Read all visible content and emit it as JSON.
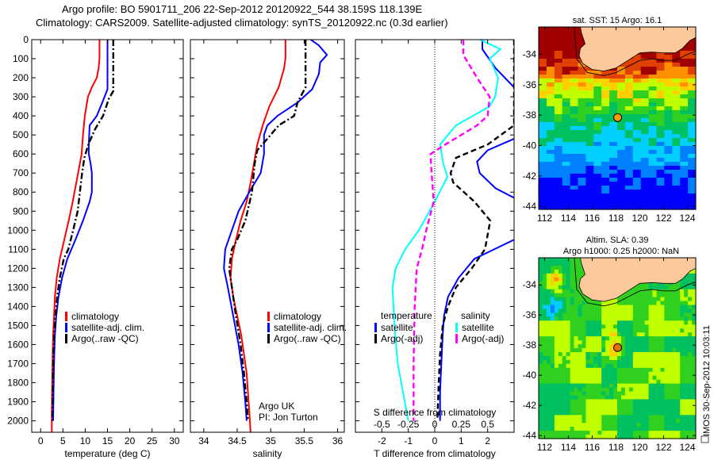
{
  "header": {
    "line1": "Argo profile: BO 5901711_206 22-Sep-2012 20120922_544 38.159S 118.139E",
    "line2": "Climatology: CARS2009. Satellite-adjusted climatology: synTS_20120922.nc (0.3d earlier)"
  },
  "colors": {
    "climatology": "#ff0000",
    "satellite": "#0000ff",
    "argo": "#000000",
    "salinity_satellite": "#00ffff",
    "salinity_argo": "#ff00ff",
    "land": "#fdc99a"
  },
  "chart_data": [
    {
      "id": "temperature",
      "type": "line",
      "xlabel": "temperature (deg C)",
      "ylabel": "",
      "xlim": [
        -2,
        32
      ],
      "ylim": [
        2060,
        0
      ],
      "xticks": [
        0,
        5,
        10,
        15,
        20,
        25,
        30
      ],
      "yticks": [
        0,
        100,
        200,
        300,
        400,
        500,
        600,
        700,
        800,
        900,
        1000,
        1100,
        1200,
        1300,
        1400,
        1500,
        1600,
        1700,
        1800,
        1900,
        2000
      ],
      "legend": [
        "climatology",
        "satellite-adj. clim.",
        "Argo(..raw -QC)"
      ],
      "series": [
        {
          "name": "climatology",
          "style": "solid",
          "color": "#ff0000",
          "x": [
            13.2,
            13.2,
            13.0,
            12.6,
            11.5,
            10.6,
            9.9,
            9.5,
            9.2,
            8.8,
            8.0,
            7.2,
            6.3,
            5.3,
            4.3,
            3.6,
            3.2,
            3.0,
            2.8,
            2.7,
            2.6,
            2.5,
            2.5
          ],
          "depth": [
            0,
            100,
            150,
            200,
            250,
            300,
            400,
            500,
            600,
            650,
            750,
            850,
            950,
            1050,
            1150,
            1250,
            1350,
            1450,
            1550,
            1650,
            1800,
            1950,
            2060
          ]
        },
        {
          "name": "satellite-adj. clim.",
          "style": "solid",
          "color": "#0000ff",
          "x": [
            15.0,
            15.0,
            15.0,
            14.0,
            12.6,
            11.0,
            10.8,
            10.8,
            11.2,
            11.5,
            11.5,
            11.0,
            9.5,
            7.8,
            6.0,
            4.8,
            4.0,
            3.5,
            3.2,
            3.0,
            2.9,
            2.8
          ],
          "depth": [
            0,
            100,
            260,
            320,
            400,
            450,
            550,
            600,
            650,
            700,
            800,
            850,
            950,
            1050,
            1150,
            1250,
            1350,
            1450,
            1550,
            1700,
            1850,
            2000
          ]
        },
        {
          "name": "Argo(..raw -QC)",
          "style": "dashdot",
          "color": "#000000",
          "x": [
            16.3,
            16.3,
            16.3,
            15.3,
            14.0,
            12.2,
            10.7,
            9.8,
            9.3,
            8.8,
            8.3,
            7.3,
            6.2,
            5.2,
            4.3,
            3.7,
            3.3,
            3.0,
            2.8,
            2.7,
            2.6
          ],
          "depth": [
            0,
            100,
            270,
            310,
            400,
            470,
            550,
            620,
            700,
            800,
            900,
            1000,
            1100,
            1150,
            1250,
            1350,
            1450,
            1550,
            1700,
            1850,
            2000
          ]
        }
      ]
    },
    {
      "id": "salinity",
      "type": "line",
      "xlabel": "salinity",
      "ylabel": "",
      "xlim": [
        33.8,
        36.1
      ],
      "ylim": [
        2060,
        0
      ],
      "xticks": [
        34,
        34.5,
        35,
        35.5,
        36
      ],
      "xticklabels": [
        "34",
        "34.5",
        "35",
        "35.5",
        "36"
      ],
      "legend": [
        "climatology",
        "satellite-adj. clim.",
        "Argo(..raw -QC)"
      ],
      "annotation": [
        "Argo UK",
        "PI: Jon Turton"
      ],
      "series": [
        {
          "name": "climatology",
          "style": "solid",
          "color": "#ff0000",
          "x": [
            35.22,
            35.22,
            35.2,
            35.12,
            34.98,
            34.88,
            34.8,
            34.75,
            34.7,
            34.64,
            34.55,
            34.48,
            34.42,
            34.4,
            34.44,
            34.5,
            34.56,
            34.6,
            34.64,
            34.66,
            34.68,
            34.7
          ],
          "depth": [
            0,
            100,
            150,
            250,
            350,
            450,
            550,
            650,
            750,
            850,
            950,
            1050,
            1150,
            1250,
            1350,
            1450,
            1550,
            1650,
            1750,
            1850,
            1950,
            2060
          ]
        },
        {
          "name": "satellite-adj. clim.",
          "style": "solid",
          "color": "#0000ff",
          "x": [
            35.6,
            35.72,
            35.84,
            35.74,
            35.72,
            35.62,
            35.4,
            35.1,
            34.95,
            34.9,
            34.9,
            34.85,
            34.68,
            34.52,
            34.42,
            34.32,
            34.3,
            34.36,
            34.44,
            34.52,
            34.58,
            34.62,
            34.64
          ],
          "depth": [
            0,
            30,
            80,
            120,
            180,
            260,
            330,
            400,
            450,
            500,
            600,
            700,
            800,
            900,
            1000,
            1100,
            1200,
            1300,
            1450,
            1600,
            1750,
            1900,
            2000
          ]
        },
        {
          "name": "Argo(..raw -QC)",
          "style": "dashdot",
          "color": "#000000",
          "x": [
            35.52,
            35.52,
            35.52,
            35.52,
            35.4,
            35.35,
            35.12,
            34.95,
            34.8,
            34.76,
            34.72,
            34.62,
            34.5,
            34.42,
            34.38,
            34.42,
            34.48,
            34.55,
            34.6,
            34.64,
            34.66
          ],
          "depth": [
            0,
            100,
            200,
            250,
            330,
            400,
            450,
            520,
            580,
            650,
            800,
            950,
            1050,
            1100,
            1200,
            1300,
            1450,
            1600,
            1750,
            1900,
            2000
          ]
        }
      ]
    },
    {
      "id": "difference",
      "type": "line",
      "xlabel": "T difference from climatology",
      "x2label": "S difference from climatology",
      "xlim": [
        -3,
        3
      ],
      "x2lim": [
        -0.75,
        0.75
      ],
      "ylim": [
        2060,
        0
      ],
      "xticks": [
        -2,
        -1,
        0,
        1,
        2
      ],
      "x2ticks": [
        -0.5,
        -0.25,
        0,
        0.25,
        0.5
      ],
      "x2ticklabels": [
        "-0.5",
        "-0.25",
        "0",
        "0.25",
        "0.5"
      ],
      "legend_temperature": {
        "title": "temperature",
        "items": [
          "satellite",
          "Argo(-adj)"
        ]
      },
      "legend_salinity": {
        "title": "salinity",
        "items": [
          "satellite",
          "Argo(-adj)"
        ]
      },
      "series": [
        {
          "name": "temperature satellite",
          "style": "solid",
          "color": "#0000ff",
          "axis": "T",
          "x": [
            1.8,
            1.8,
            2.3,
            3.0,
            3.5,
            5.0,
            3.0,
            2.0,
            1.6,
            1.7,
            2.3,
            3.0,
            5.5,
            3.0,
            1.5,
            0.9,
            0.5,
            0.35,
            0.3,
            0.25,
            0.2,
            0.2
          ],
          "depth": [
            0,
            50,
            150,
            250,
            300,
            400,
            520,
            580,
            640,
            700,
            780,
            830,
            900,
            1050,
            1150,
            1250,
            1350,
            1450,
            1550,
            1700,
            1850,
            2000
          ]
        },
        {
          "name": "temperature Argo(-adj)",
          "style": "dashed",
          "color": "#000000",
          "axis": "T",
          "x": [
            3.0,
            3.0,
            3.0,
            2.0,
            0.8,
            0.6,
            0.7,
            1.1,
            1.5,
            1.8,
            2.1,
            1.9,
            1.4,
            0.8,
            0.5,
            0.3,
            0.2,
            0.15,
            0.1
          ],
          "depth": [
            0,
            30,
            450,
            550,
            620,
            700,
            750,
            800,
            850,
            900,
            950,
            1100,
            1200,
            1300,
            1400,
            1500,
            1650,
            1800,
            2000
          ]
        },
        {
          "name": "salinity satellite",
          "style": "solid",
          "color": "#00ffff",
          "axis": "S",
          "x": [
            0.43,
            0.62,
            0.52,
            0.6,
            0.57,
            0.52,
            0.2,
            0.05,
            0.08,
            0.12,
            0.0,
            -0.15,
            -0.28,
            -0.37,
            -0.4,
            -0.38,
            -0.35,
            -0.3,
            -0.25
          ],
          "depth": [
            0,
            50,
            100,
            200,
            300,
            350,
            450,
            550,
            650,
            720,
            850,
            1000,
            1100,
            1200,
            1300,
            1500,
            1700,
            1850,
            2000
          ]
        },
        {
          "name": "salinity Argo(-adj)",
          "style": "dashed",
          "color": "#ff00ff",
          "axis": "S",
          "x": [
            0.27,
            0.27,
            0.4,
            0.52,
            0.5,
            0.4,
            0.1,
            -0.04,
            -0.03,
            -0.01,
            -0.08,
            -0.12,
            -0.17,
            -0.19,
            -0.2,
            -0.2
          ],
          "depth": [
            0,
            80,
            200,
            300,
            400,
            450,
            550,
            600,
            700,
            850,
            1000,
            1100,
            1200,
            1400,
            1700,
            2000
          ]
        }
      ]
    },
    {
      "id": "sst-map",
      "type": "heatmap",
      "title": "sat. SST: 15 Argo: 16.1",
      "xlim": [
        111.5,
        124.7
      ],
      "ylim": [
        -44.2,
        -32.2
      ],
      "xticks": [
        112,
        114,
        116,
        118,
        120,
        122,
        124
      ],
      "yticks": [
        -34,
        -36,
        -38,
        -40,
        -42,
        -44
      ],
      "marker": {
        "lon": 118.139,
        "lat": -38.159
      }
    },
    {
      "id": "sla-map",
      "type": "heatmap",
      "title": "Altim. SLA: 0.39",
      "subtitle": "Argo h1000: 0.25 h2000: NaN",
      "xlim": [
        111.5,
        124.7
      ],
      "ylim": [
        -44.2,
        -32.2
      ],
      "xticks": [
        112,
        114,
        116,
        118,
        120,
        122,
        124
      ],
      "yticks": [
        -34,
        -36,
        -38,
        -40,
        -42,
        -44
      ],
      "marker": {
        "lon": 118.139,
        "lat": -38.159
      }
    }
  ],
  "footer": {
    "credit": "IMOS 30-Sep-2012 10:03:11"
  }
}
